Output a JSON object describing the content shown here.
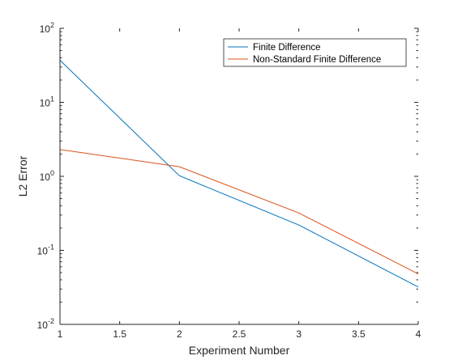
{
  "chart_data": {
    "type": "line",
    "title": "",
    "xlabel": "Experiment Number",
    "ylabel": "L2 Error",
    "xlim": [
      1,
      4
    ],
    "ylim": [
      0.01,
      100
    ],
    "yscale": "log",
    "grid": false,
    "legend_position": "top-right",
    "x_ticks": [
      1,
      1.5,
      2,
      2.5,
      3,
      3.5,
      4
    ],
    "x_tick_labels": [
      "1",
      "1.5",
      "2",
      "2.5",
      "3",
      "3.5",
      "4"
    ],
    "y_ticks": [
      0.01,
      0.1,
      1,
      10,
      100
    ],
    "y_tick_labels": [
      {
        "base": "10",
        "exp": "-2"
      },
      {
        "base": "10",
        "exp": "-1"
      },
      {
        "base": "10",
        "exp": "0"
      },
      {
        "base": "10",
        "exp": "1"
      },
      {
        "base": "10",
        "exp": "2"
      }
    ],
    "x": [
      1,
      2,
      3,
      4
    ],
    "series": [
      {
        "name": "Finite Difference",
        "color": "#0072BD",
        "values": [
          37,
          1.02,
          0.22,
          0.032
        ]
      },
      {
        "name": "Non-Standard Finite Difference",
        "color": "#D95319",
        "values": [
          2.3,
          1.35,
          0.32,
          0.048
        ]
      }
    ]
  }
}
